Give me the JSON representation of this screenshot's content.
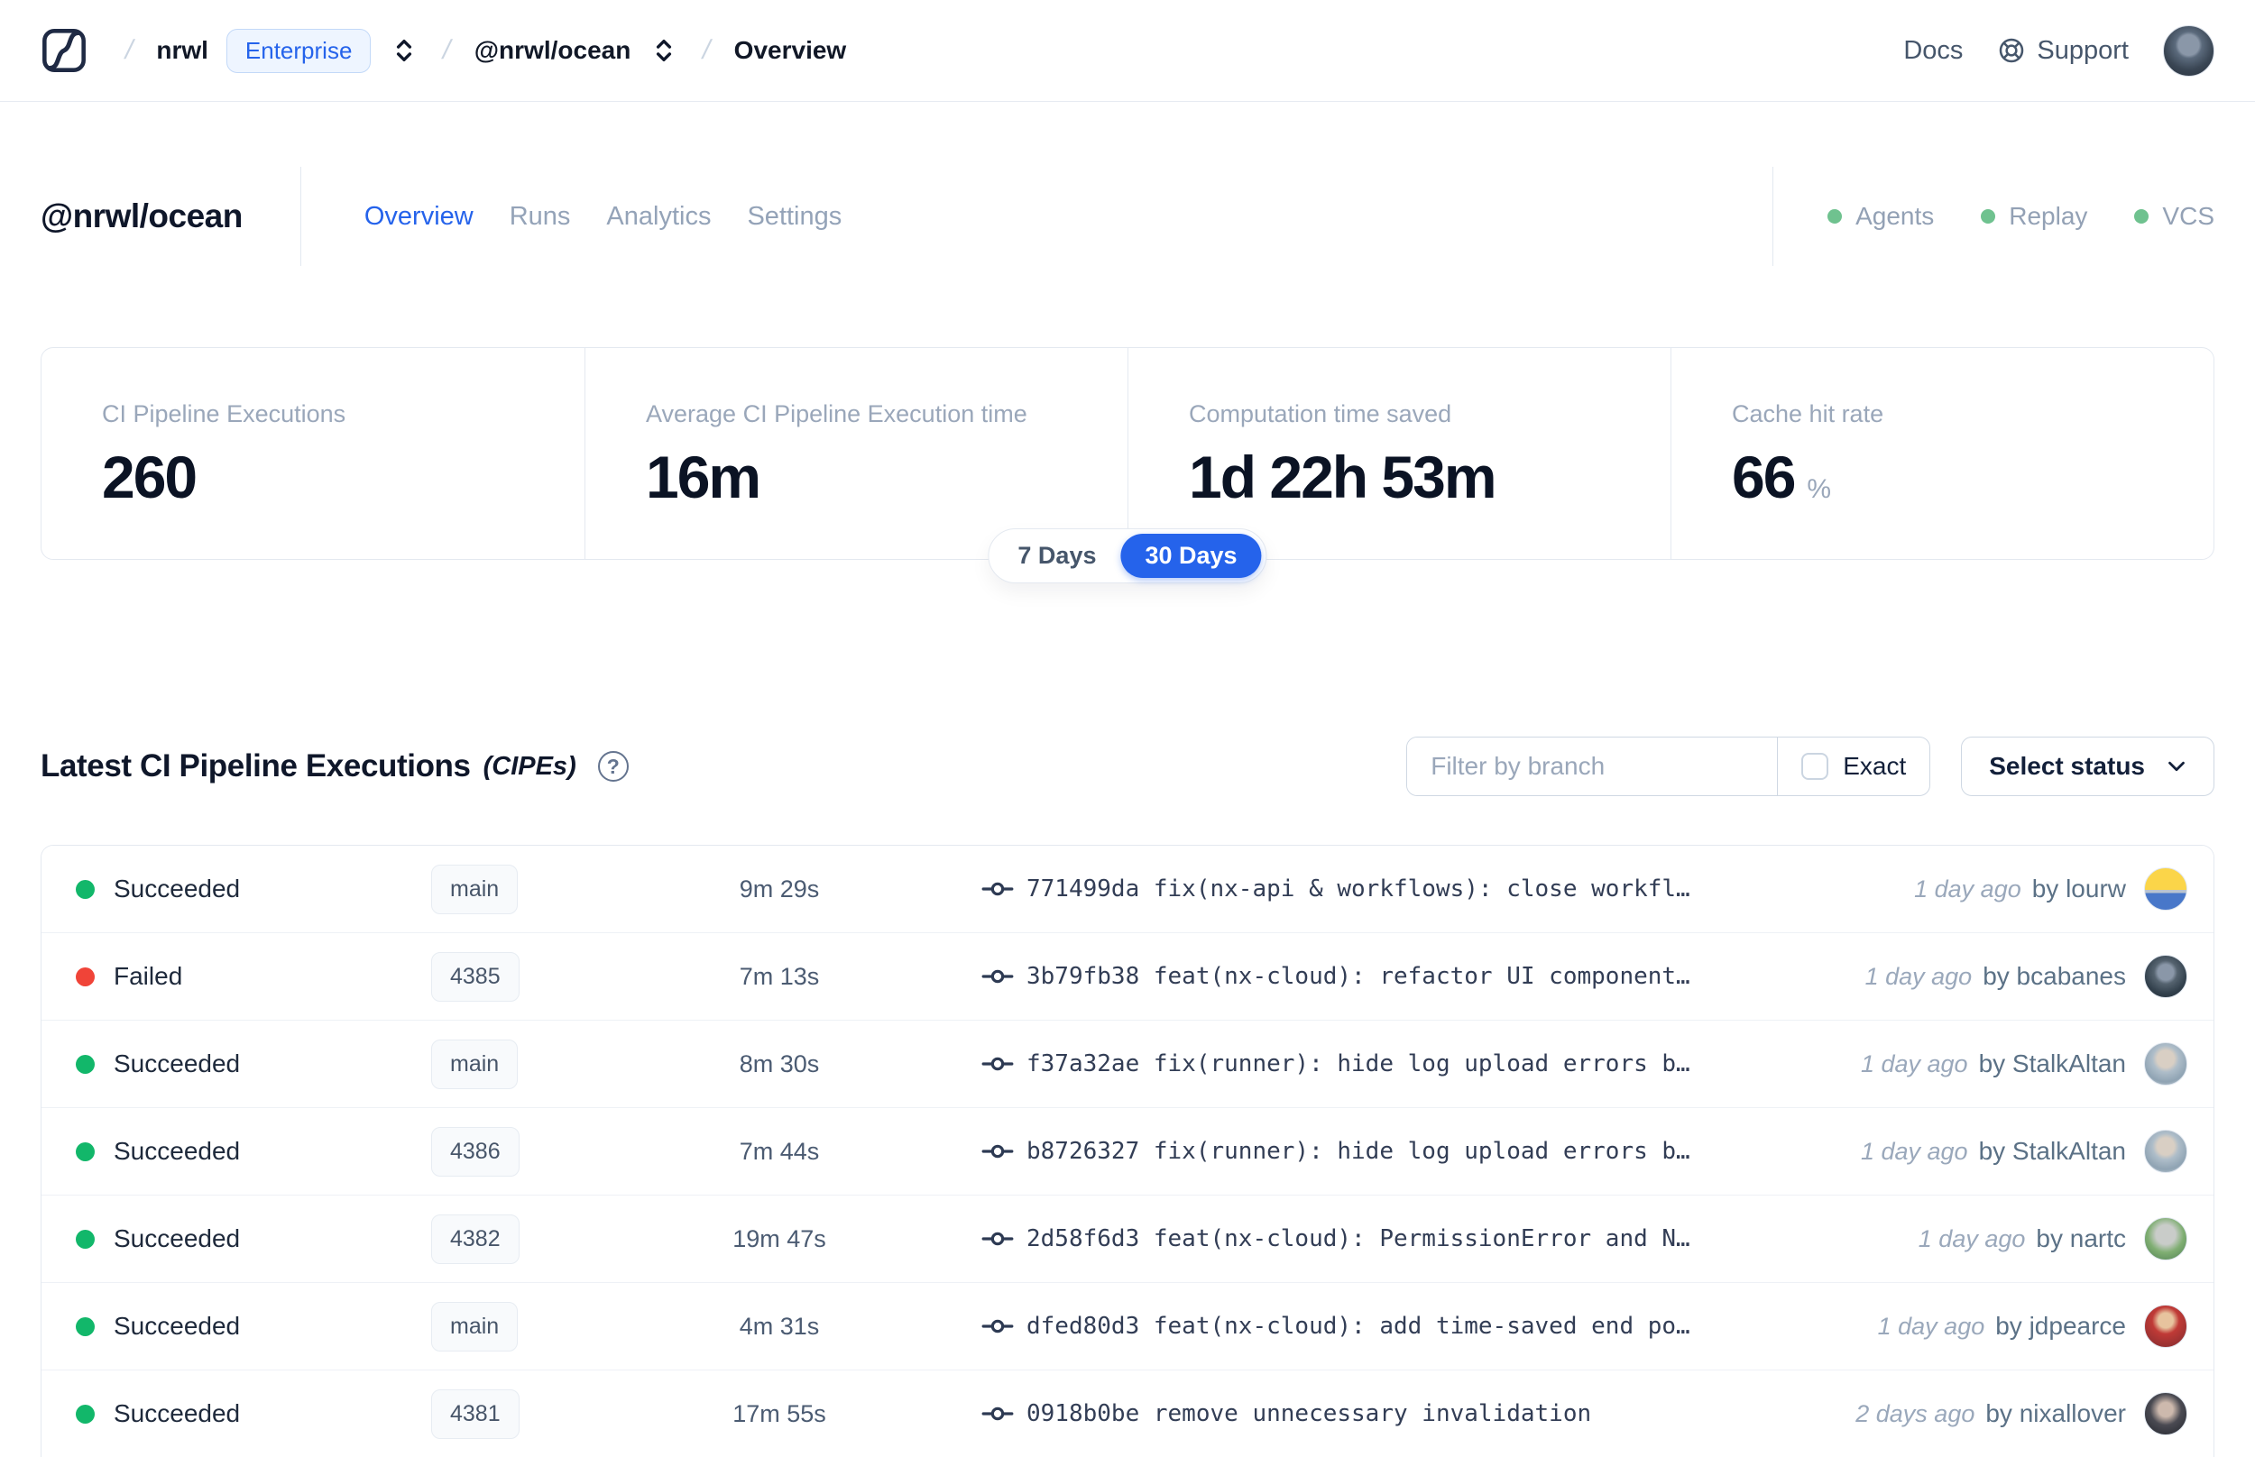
{
  "colors": {
    "accent": "#2563eb",
    "green": "#12b76a",
    "red": "#f04438",
    "soft_green": "#6fc28f"
  },
  "nav": {
    "separator": "/",
    "breadcrumb": {
      "org": "nrwl",
      "org_badge": "Enterprise",
      "workspace": "@nrwl/ocean",
      "page": "Overview"
    },
    "links": {
      "docs": "Docs",
      "support": "Support"
    }
  },
  "header": {
    "title": "@nrwl/ocean",
    "tabs": [
      {
        "label": "Overview",
        "active": true
      },
      {
        "label": "Runs",
        "active": false
      },
      {
        "label": "Analytics",
        "active": false
      },
      {
        "label": "Settings",
        "active": false
      }
    ],
    "statuses": [
      {
        "label": "Agents"
      },
      {
        "label": "Replay"
      },
      {
        "label": "VCS"
      }
    ]
  },
  "stats": {
    "cards": [
      {
        "label": "CI Pipeline Executions",
        "value": "260",
        "suffix": ""
      },
      {
        "label": "Average CI Pipeline Execution time",
        "value": "16m",
        "suffix": ""
      },
      {
        "label": "Computation time saved",
        "value": "1d 22h 53m",
        "suffix": ""
      },
      {
        "label": "Cache hit rate",
        "value": "66",
        "suffix": "%"
      }
    ],
    "range_toggle": {
      "options": [
        "7 Days",
        "30 Days"
      ],
      "selected": "30 Days"
    }
  },
  "cipe": {
    "title": "Latest CI Pipeline Executions",
    "title_suffix": "(CIPEs)",
    "help_glyph": "?",
    "filter": {
      "branch_placeholder": "Filter by branch",
      "exact_label": "Exact",
      "status_label": "Select status"
    },
    "rows": [
      {
        "status": "Succeeded",
        "branch": "main",
        "duration": "9m 29s",
        "commit": "771499da fix(nx-api & workflows): close workfl…",
        "when": "1 day ago",
        "author": "by lourw"
      },
      {
        "status": "Failed",
        "branch": "4385",
        "duration": "7m 13s",
        "commit": "3b79fb38 feat(nx-cloud): refactor UI component…",
        "when": "1 day ago",
        "author": "by bcabanes"
      },
      {
        "status": "Succeeded",
        "branch": "main",
        "duration": "8m 30s",
        "commit": "f37a32ae fix(runner): hide log upload errors b…",
        "when": "1 day ago",
        "author": "by StalkAltan"
      },
      {
        "status": "Succeeded",
        "branch": "4386",
        "duration": "7m 44s",
        "commit": "b8726327 fix(runner): hide log upload errors b…",
        "when": "1 day ago",
        "author": "by StalkAltan"
      },
      {
        "status": "Succeeded",
        "branch": "4382",
        "duration": "19m 47s",
        "commit": "2d58f6d3 feat(nx-cloud): PermissionError and N…",
        "when": "1 day ago",
        "author": "by nartc"
      },
      {
        "status": "Succeeded",
        "branch": "main",
        "duration": "4m 31s",
        "commit": "dfed80d3 feat(nx-cloud): add time-saved end po…",
        "when": "1 day ago",
        "author": "by jdpearce"
      },
      {
        "status": "Succeeded",
        "branch": "4381",
        "duration": "17m 55s",
        "commit": "0918b0be remove unnecessary invalidation",
        "when": "2 days ago",
        "author": "by nixallover"
      }
    ]
  }
}
